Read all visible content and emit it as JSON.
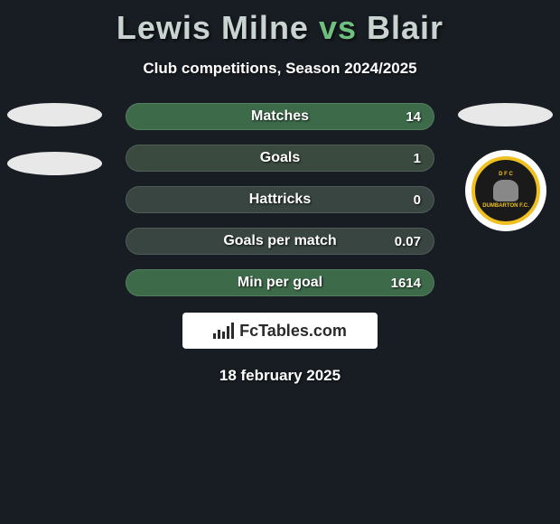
{
  "title": {
    "player1": "Lewis Milne",
    "vs": "vs",
    "player2": "Blair",
    "player1_color": "#c9d4d1",
    "vs_color": "#6fbf7f",
    "player2_color": "#c9d4d1"
  },
  "subtitle": "Club competitions, Season 2024/2025",
  "stats": [
    {
      "label": "Matches",
      "value": "14",
      "bg": "#3d6b4a"
    },
    {
      "label": "Goals",
      "value": "1",
      "bg": "#3a4a3f"
    },
    {
      "label": "Hattricks",
      "value": "0",
      "bg": "#384540"
    },
    {
      "label": "Goals per match",
      "value": "0.07",
      "bg": "#384540"
    },
    {
      "label": "Min per goal",
      "value": "1614",
      "bg": "#3d6b4a"
    }
  ],
  "left_oval_count": 2,
  "right_oval_count": 1,
  "club_badge": {
    "top_text": "D F C",
    "bottom_text": "DUMBARTON F.C.",
    "ring_color": "#f0c020",
    "inner_bg": "#1a1a1a"
  },
  "brand": "FcTables.com",
  "date": "18 february 2025",
  "colors": {
    "page_bg": "#181d23",
    "oval_bg": "#e8e8e8"
  }
}
